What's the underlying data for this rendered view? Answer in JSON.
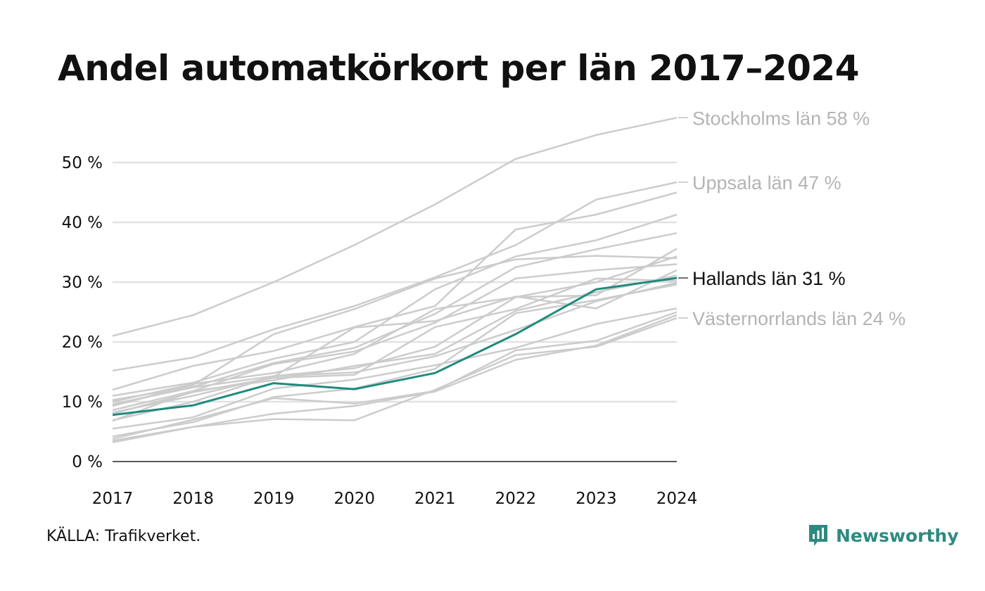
{
  "title": "Andel automatkörkort per län 2017–2024",
  "source": "KÄLLA: Trafikverket.",
  "brand": {
    "name": "Newsworthy",
    "icon": "bar-chart-logo-icon"
  },
  "colors": {
    "highlight": "#1e8a7e",
    "background_series": "#cccccc",
    "grid": "#e2e2e2",
    "end_label_gray": "#b4b4b4"
  },
  "chart_data": {
    "type": "line",
    "x": [
      "2017",
      "2018",
      "2019",
      "2020",
      "2021",
      "2022",
      "2023",
      "2024"
    ],
    "ylim": [
      0,
      58
    ],
    "yticks": [
      0,
      10,
      20,
      30,
      40,
      50
    ],
    "ytick_labels": [
      "0 %",
      "10 %",
      "20 %",
      "30 %",
      "40 %",
      "50 %"
    ],
    "grid": "horizontal",
    "highlight_series": "Hallands län",
    "labels": [
      {
        "series": "Stockholms län",
        "text": "Stockholms län 58 %",
        "value": 57.5,
        "highlight": false
      },
      {
        "series": "Uppsala län",
        "text": "Uppsala län 47 %",
        "value": 46.7,
        "highlight": false
      },
      {
        "series": "Hallands län",
        "text": "Hallands län 31 %",
        "value": 30.7,
        "highlight": true
      },
      {
        "series": "Västernorrlands län",
        "text": "Västernorrlands län 24 %",
        "value": 24.0,
        "highlight": false
      }
    ],
    "series": [
      {
        "name": "Stockholms län",
        "values": [
          21.0,
          24.5,
          30.0,
          36.2,
          43.0,
          50.6,
          54.6,
          57.5
        ]
      },
      {
        "name": "Uppsala län",
        "values": [
          15.2,
          17.4,
          22.1,
          26.0,
          30.8,
          36.2,
          43.8,
          46.7
        ]
      },
      {
        "name": "Hallands län",
        "values": [
          7.8,
          9.4,
          13.1,
          12.1,
          14.8,
          21.3,
          28.8,
          30.7
        ]
      },
      {
        "name": "Västernorrlands län",
        "values": [
          3.5,
          5.8,
          7.1,
          6.9,
          12.0,
          17.8,
          19.2,
          24.0
        ]
      },
      {
        "values": [
          12.0,
          16.0,
          18.5,
          22.5,
          26.0,
          38.8,
          41.3,
          45.0
        ]
      },
      {
        "values": [
          11.0,
          13.2,
          17.2,
          20.0,
          28.8,
          34.3,
          37.0,
          41.3
        ]
      },
      {
        "values": [
          10.3,
          12.5,
          16.5,
          19.0,
          24.7,
          32.5,
          35.5,
          38.2
        ]
      },
      {
        "values": [
          9.3,
          12.8,
          21.3,
          25.5,
          30.6,
          33.8,
          34.4,
          34.0
        ]
      },
      {
        "values": [
          10.0,
          13.0,
          14.8,
          18.0,
          25.5,
          27.5,
          27.8,
          35.6
        ]
      },
      {
        "values": [
          8.6,
          11.8,
          16.3,
          18.4,
          23.2,
          30.6,
          32.0,
          33.0
        ]
      },
      {
        "values": [
          8.2,
          11.0,
          14.2,
          22.4,
          23.5,
          27.6,
          25.6,
          32.0
        ]
      },
      {
        "values": [
          9.6,
          12.4,
          14.3,
          15.6,
          19.2,
          27.5,
          30.0,
          34.3
        ]
      },
      {
        "values": [
          8.0,
          11.6,
          14.0,
          14.5,
          22.5,
          25.5,
          30.6,
          30.2
        ]
      },
      {
        "values": [
          6.8,
          11.8,
          13.6,
          16.0,
          18.0,
          25.2,
          28.3,
          31.1
        ]
      },
      {
        "values": [
          6.9,
          10.0,
          14.3,
          14.9,
          17.6,
          22.0,
          26.8,
          29.9
        ]
      },
      {
        "values": [
          5.5,
          7.4,
          12.2,
          13.7,
          16.1,
          19.0,
          23.0,
          25.6
        ]
      },
      {
        "values": [
          4.2,
          6.6,
          10.8,
          12.2,
          15.5,
          24.8,
          27.0,
          29.6
        ]
      },
      {
        "values": [
          3.8,
          7.0,
          10.6,
          9.7,
          11.8,
          18.6,
          20.2,
          25.0
        ]
      },
      {
        "values": [
          3.2,
          5.8,
          8.0,
          9.3,
          11.7,
          17.0,
          19.4,
          24.5
        ]
      }
    ]
  }
}
